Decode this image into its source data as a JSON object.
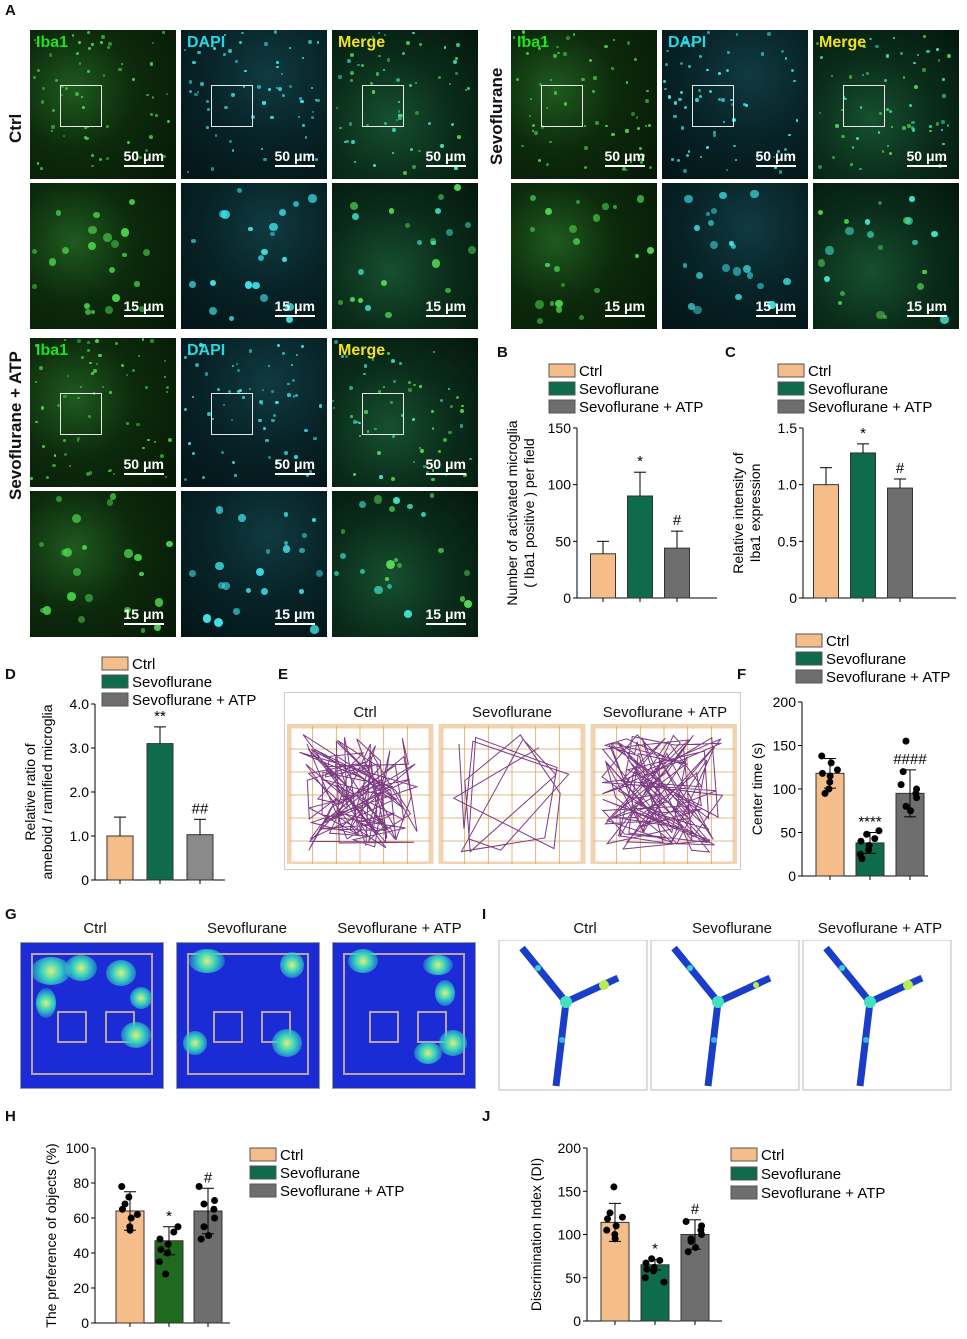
{
  "panel_letters": {
    "a": "A",
    "b": "B",
    "c": "C",
    "d": "D",
    "e": "E",
    "f": "F",
    "g": "G",
    "h": "H",
    "i": "I",
    "j": "J"
  },
  "micrograph": {
    "rows": [
      "Ctrl",
      "Sevoflurane",
      "Sevoflurane + ATP"
    ],
    "channels": [
      "Iba1",
      "DAPI",
      "Merge"
    ],
    "scale_large": "50 μm",
    "scale_small": "15 μm"
  },
  "colors": {
    "ctrl": "#f5bd8a",
    "sevo": "#0e6b4b",
    "atp": "#6e6e6e",
    "sevo_dark": "#1f6a1f",
    "atp_grey": "#8a8a8a"
  },
  "legend": {
    "ctrl": "Ctrl",
    "sevo": "Sevoflurane",
    "atp": "Sevoflurane + ATP"
  },
  "open_field_titles": [
    "Ctrl",
    "Sevoflurane",
    "Sevoflurane + ATP"
  ],
  "heatmap_titles": [
    "Ctrl",
    "Sevoflurane",
    "Sevoflurane + ATP"
  ],
  "ymaze_titles": [
    "Ctrl",
    "Sevoflurane",
    "Sevoflurane + ATP"
  ],
  "chart_data": [
    {
      "id": "B",
      "type": "bar",
      "categories": [
        "Ctrl",
        "Sevoflurane",
        "Sevoflurane + ATP"
      ],
      "values": [
        39,
        90,
        44
      ],
      "errors": [
        11,
        21,
        15
      ],
      "annotations": [
        "",
        "*",
        "#"
      ],
      "ylabel": "Number of activated microglia\n( Iba1 positive ) per field",
      "ylim": [
        0,
        150
      ],
      "yticks": [
        "0",
        "50",
        "100",
        "150"
      ]
    },
    {
      "id": "C",
      "type": "bar",
      "categories": [
        "Ctrl",
        "Sevoflurane",
        "Sevoflurane + ATP"
      ],
      "values": [
        1.0,
        1.28,
        0.97
      ],
      "errors": [
        0.15,
        0.08,
        0.08
      ],
      "annotations": [
        "",
        "*",
        "#"
      ],
      "ylabel": "Relative intensity of\nIba1 expression",
      "ylim": [
        0,
        1.5
      ],
      "yticks": [
        "0",
        "0.5",
        "1.0",
        "1.5"
      ]
    },
    {
      "id": "D",
      "type": "bar",
      "categories": [
        "Ctrl",
        "Sevoflurane",
        "Sevoflurane + ATP"
      ],
      "values": [
        1.0,
        3.1,
        1.03
      ],
      "errors": [
        0.43,
        0.38,
        0.35
      ],
      "annotations": [
        "",
        "**",
        "##"
      ],
      "ylabel": "Relative ratio of\nameboid / ramified microglia",
      "ylim": [
        0,
        4.0
      ],
      "yticks": [
        "0",
        "1.0",
        "2.0",
        "3.0",
        "4.0"
      ]
    },
    {
      "id": "F",
      "type": "bar",
      "categories": [
        "Ctrl",
        "Sevoflurane",
        "Sevoflurane + ATP"
      ],
      "values": [
        118,
        38,
        95
      ],
      "errors": [
        17,
        12,
        27
      ],
      "annotations": [
        "",
        "****",
        "####"
      ],
      "points": [
        [
          108,
          130,
          118,
          95,
          100,
          115,
          138,
          122
        ],
        [
          25,
          30,
          35,
          40,
          43,
          48,
          52,
          20
        ],
        [
          75,
          80,
          95,
          100,
          105,
          120,
          90,
          155
        ]
      ],
      "ylabel": "Center time (s)",
      "ylim": [
        0,
        200
      ],
      "yticks": [
        "0",
        "50",
        "100",
        "150",
        "200"
      ]
    },
    {
      "id": "H",
      "type": "bar",
      "categories": [
        "Ctrl",
        "Sevoflurane",
        "Sevoflurane + ATP"
      ],
      "values": [
        64,
        47,
        64
      ],
      "errors": [
        11,
        8,
        13
      ],
      "annotations": [
        "",
        "*",
        "#"
      ],
      "points": [
        [
          55,
          60,
          65,
          68,
          72,
          53,
          78,
          62
        ],
        [
          35,
          40,
          45,
          48,
          52,
          28,
          55,
          42
        ],
        [
          50,
          55,
          65,
          70,
          78,
          48,
          60,
          68
        ]
      ],
      "ylabel": "The preference of objects (%)",
      "ylim": [
        0,
        100
      ],
      "yticks": [
        "0",
        "20",
        "40",
        "60",
        "80",
        "100"
      ]
    },
    {
      "id": "J",
      "type": "bar",
      "categories": [
        "Ctrl",
        "Sevoflurane",
        "Sevoflurane + ATP"
      ],
      "values": [
        114,
        65,
        100
      ],
      "errors": [
        22,
        6,
        17
      ],
      "annotations": [
        "",
        "*",
        "#"
      ],
      "points": [
        [
          100,
          110,
          118,
          125,
          155,
          95,
          105,
          120
        ],
        [
          50,
          58,
          62,
          67,
          70,
          72,
          45,
          60
        ],
        [
          85,
          95,
          105,
          110,
          115,
          80,
          100,
          92
        ]
      ],
      "ylabel": "Discrimination Index (DI)",
      "ylim": [
        0,
        200
      ],
      "yticks": [
        "0",
        "50",
        "100",
        "150",
        "200"
      ]
    }
  ]
}
